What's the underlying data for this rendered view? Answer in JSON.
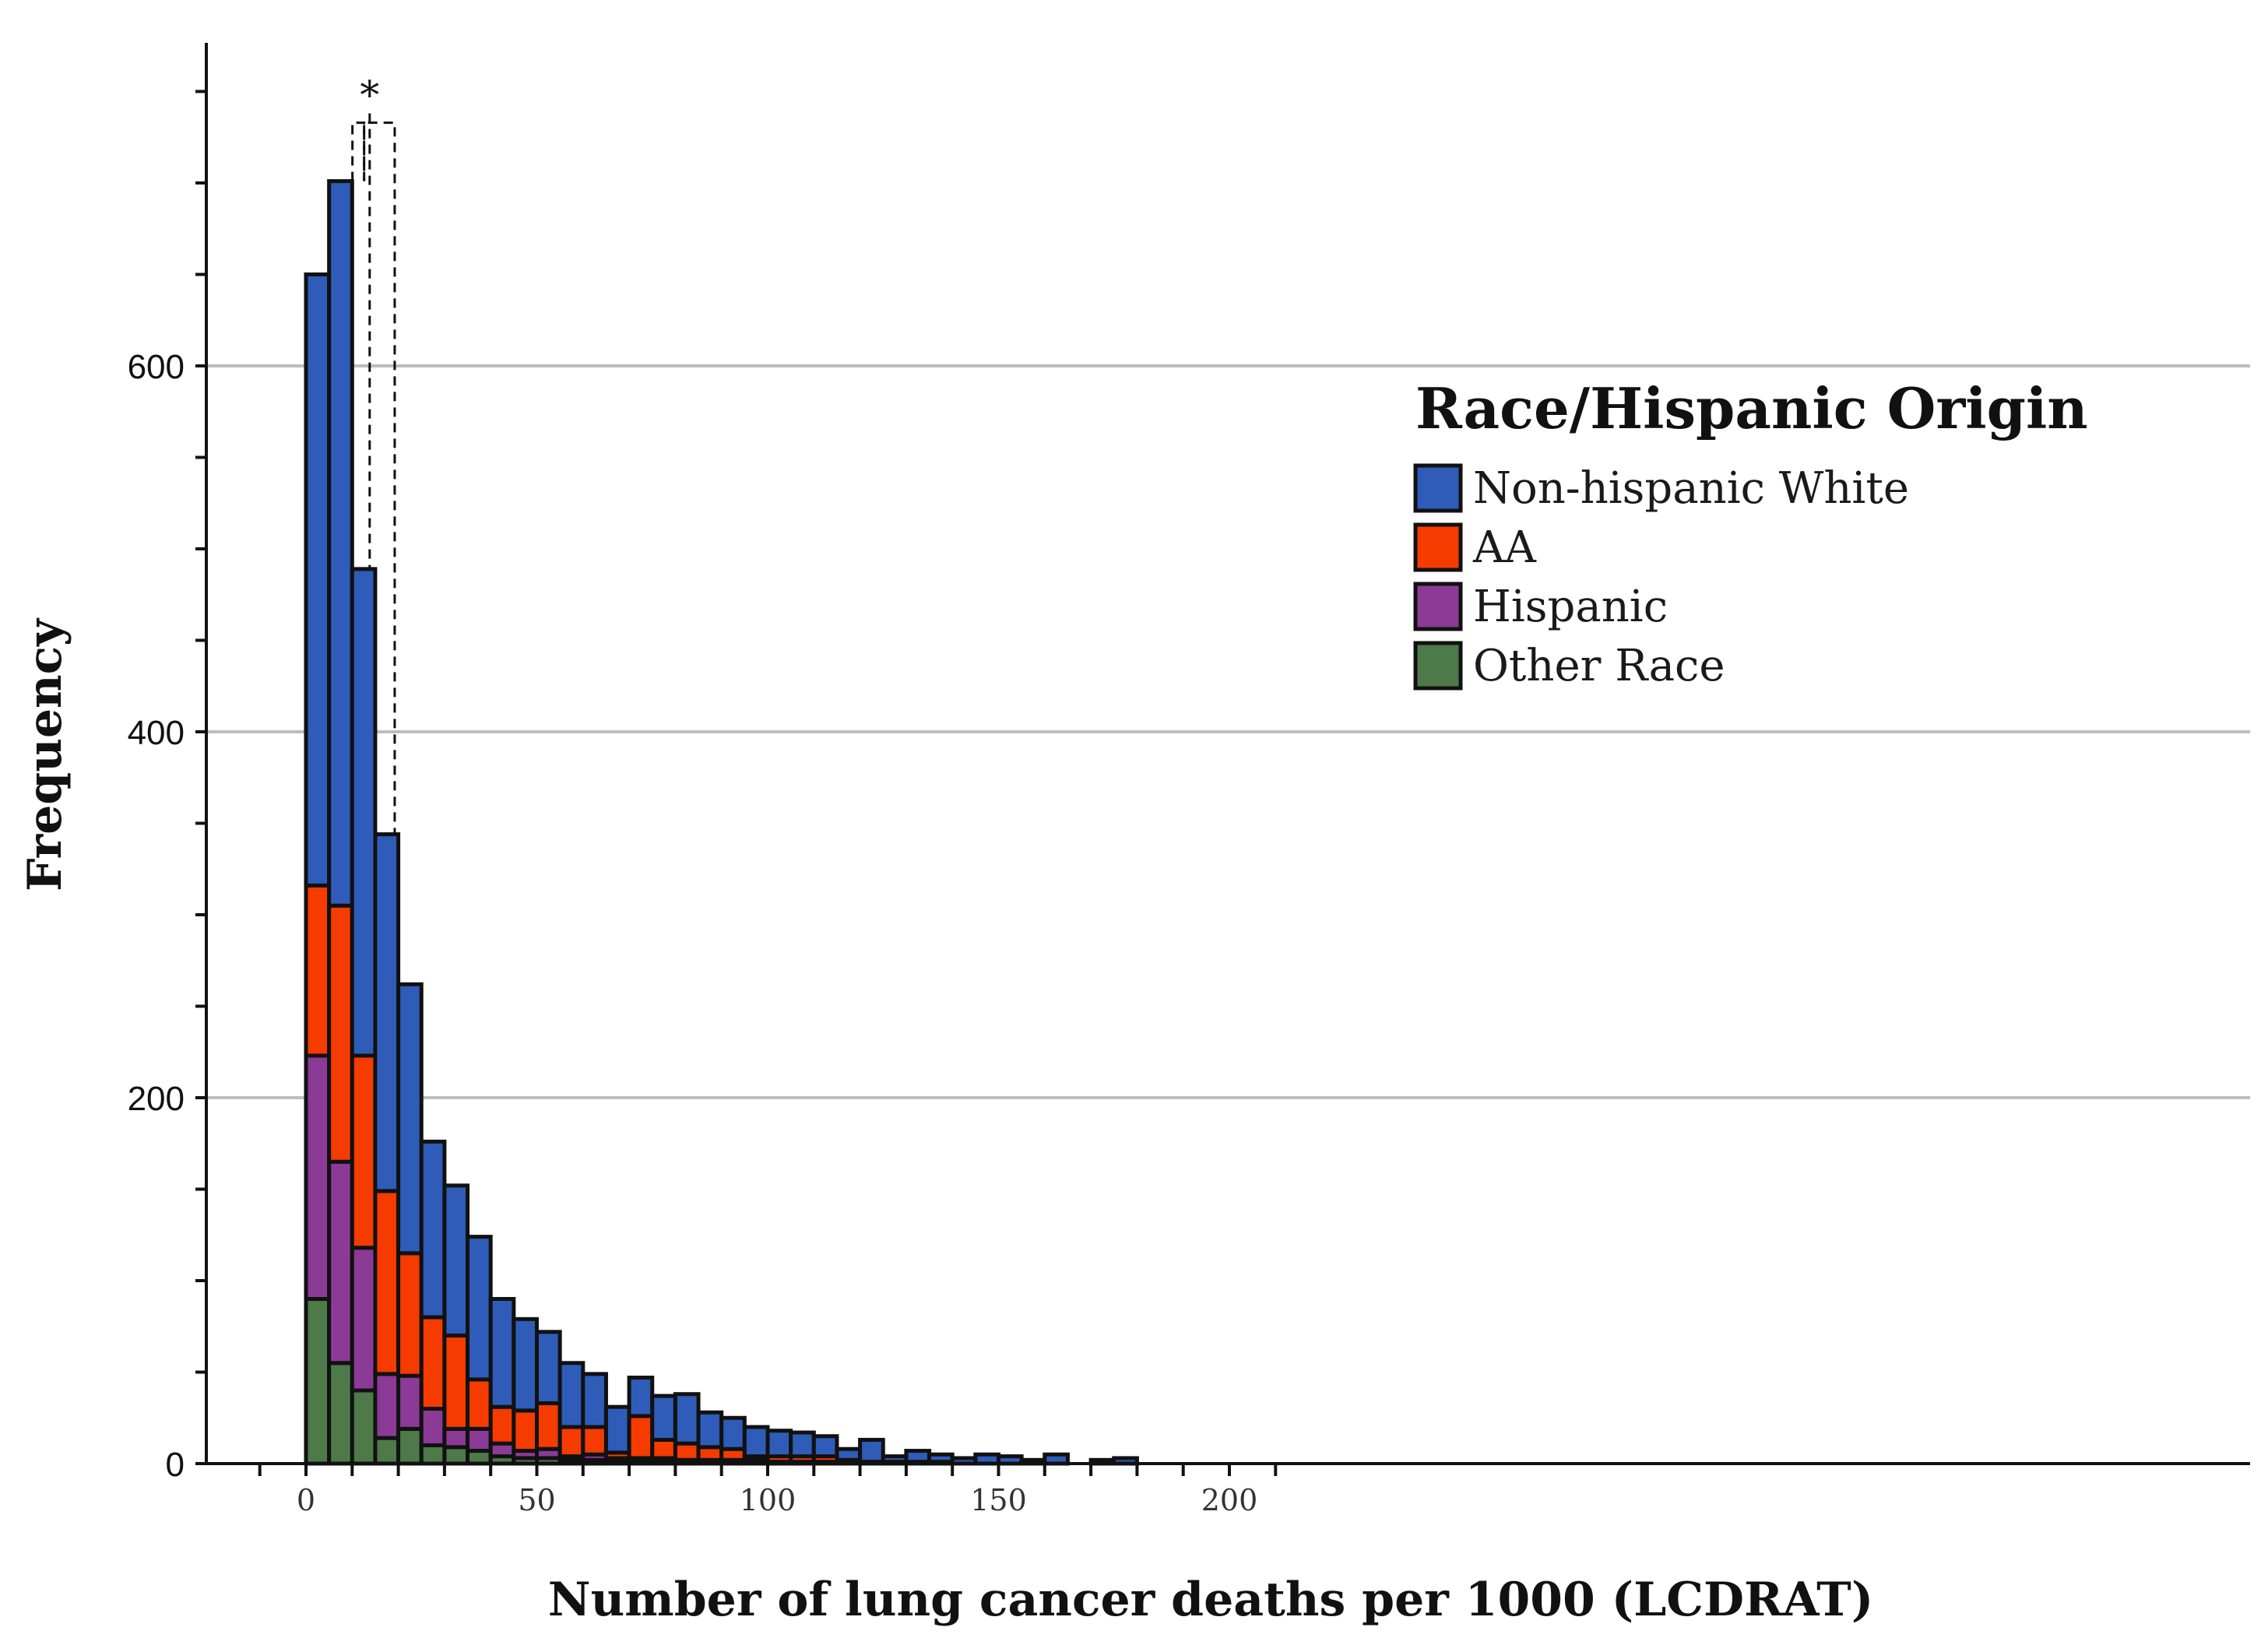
{
  "chart_data": {
    "type": "bar",
    "stacked": true,
    "xlabel": "Number of lung cancer deaths per 1000 (LCDRAT)",
    "ylabel": "Frequency",
    "xlim": [
      -10,
      210
    ],
    "ylim": [
      0,
      780
    ],
    "xticks": [
      0,
      50,
      100,
      150,
      200
    ],
    "yticks": [
      0,
      200,
      400,
      600
    ],
    "grid": "horizontal",
    "legend": {
      "title": "Race/Hispanic Origin",
      "placement": "right"
    },
    "bins": [
      {
        "x0": 0,
        "x1": 5
      },
      {
        "x0": 5,
        "x1": 10
      },
      {
        "x0": 10,
        "x1": 15
      },
      {
        "x0": 15,
        "x1": 20
      },
      {
        "x0": 20,
        "x1": 25
      },
      {
        "x0": 25,
        "x1": 30
      },
      {
        "x0": 30,
        "x1": 35
      },
      {
        "x0": 35,
        "x1": 40
      },
      {
        "x0": 40,
        "x1": 45
      },
      {
        "x0": 45,
        "x1": 50
      },
      {
        "x0": 50,
        "x1": 55
      },
      {
        "x0": 55,
        "x1": 60
      },
      {
        "x0": 60,
        "x1": 65
      },
      {
        "x0": 65,
        "x1": 70
      },
      {
        "x0": 70,
        "x1": 75
      },
      {
        "x0": 75,
        "x1": 80
      },
      {
        "x0": 80,
        "x1": 85
      },
      {
        "x0": 85,
        "x1": 90
      },
      {
        "x0": 90,
        "x1": 95
      },
      {
        "x0": 95,
        "x1": 100
      },
      {
        "x0": 100,
        "x1": 105
      },
      {
        "x0": 105,
        "x1": 110
      },
      {
        "x0": 110,
        "x1": 115
      },
      {
        "x0": 115,
        "x1": 120
      },
      {
        "x0": 120,
        "x1": 125
      },
      {
        "x0": 125,
        "x1": 130
      },
      {
        "x0": 130,
        "x1": 135
      },
      {
        "x0": 135,
        "x1": 140
      },
      {
        "x0": 140,
        "x1": 145
      },
      {
        "x0": 145,
        "x1": 150
      },
      {
        "x0": 150,
        "x1": 155
      },
      {
        "x0": 155,
        "x1": 160
      },
      {
        "x0": 160,
        "x1": 165
      },
      {
        "x0": 165,
        "x1": 170
      },
      {
        "x0": 170,
        "x1": 175
      },
      {
        "x0": 175,
        "x1": 180
      }
    ],
    "series": [
      {
        "name": "Other Race",
        "color": "#4e7a4a",
        "values": [
          90,
          55,
          40,
          14,
          19,
          10,
          9,
          7,
          4,
          3,
          3,
          2,
          2,
          1,
          1,
          1,
          1,
          1,
          1,
          1,
          0,
          0,
          0,
          0,
          0,
          0,
          0,
          0,
          0,
          0,
          0,
          0,
          0,
          0,
          0,
          0
        ]
      },
      {
        "name": "Hispanic",
        "color": "#8b3a96",
        "values": [
          133,
          110,
          78,
          35,
          29,
          20,
          10,
          12,
          7,
          4,
          5,
          2,
          3,
          2,
          2,
          2,
          1,
          1,
          1,
          1,
          1,
          1,
          1,
          0,
          0,
          0,
          0,
          0,
          0,
          0,
          0,
          0,
          0,
          0,
          0,
          0
        ]
      },
      {
        "name": "AA",
        "color": "#f53b00",
        "values": [
          93,
          140,
          105,
          100,
          67,
          50,
          51,
          27,
          20,
          22,
          25,
          16,
          15,
          3,
          23,
          10,
          9,
          7,
          6,
          2,
          3,
          3,
          3,
          2,
          1,
          1,
          1,
          1,
          0,
          0,
          0,
          0,
          0,
          0,
          0,
          0
        ]
      },
      {
        "name": "Non-hispanic White",
        "color": "#2f5cb8",
        "values": [
          334,
          396,
          266,
          195,
          147,
          96,
          82,
          78,
          59,
          50,
          39,
          35,
          29,
          25,
          21,
          24,
          27,
          19,
          17,
          16,
          14,
          13,
          11,
          6,
          12,
          3,
          6,
          4,
          3,
          5,
          4,
          2,
          5,
          0,
          2,
          3
        ]
      }
    ],
    "annotations": [
      {
        "text": "*",
        "type": "bracket",
        "from_bins": [
          1,
          3
        ]
      }
    ]
  }
}
